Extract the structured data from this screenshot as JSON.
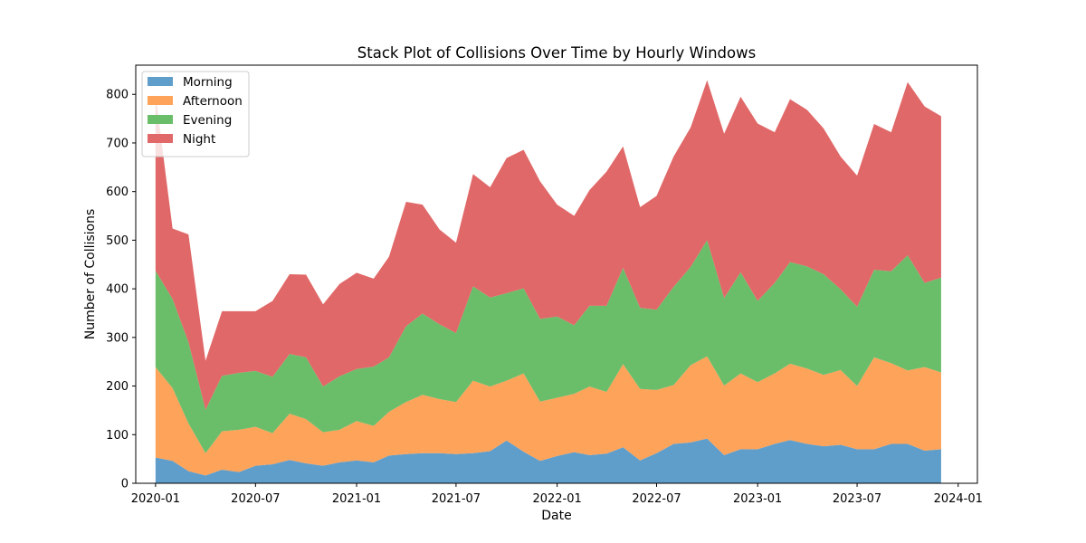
{
  "chart_data": {
    "type": "area",
    "stacked": true,
    "title": "Stack Plot of Collisions Over Time by Hourly Windows",
    "xlabel": "Date",
    "ylabel": "Number of Collisions",
    "x": [
      "2020-01",
      "2020-02",
      "2020-03",
      "2020-04",
      "2020-05",
      "2020-06",
      "2020-07",
      "2020-08",
      "2020-09",
      "2020-10",
      "2020-11",
      "2020-12",
      "2021-01",
      "2021-02",
      "2021-03",
      "2021-04",
      "2021-05",
      "2021-06",
      "2021-07",
      "2021-08",
      "2021-09",
      "2021-10",
      "2021-11",
      "2021-12",
      "2022-01",
      "2022-02",
      "2022-03",
      "2022-04",
      "2022-05",
      "2022-06",
      "2022-07",
      "2022-08",
      "2022-09",
      "2022-10",
      "2022-11",
      "2022-12",
      "2023-01",
      "2023-02",
      "2023-03",
      "2023-04",
      "2023-05",
      "2023-06",
      "2023-07",
      "2023-08",
      "2023-09",
      "2023-10",
      "2023-11",
      "2023-12"
    ],
    "series": [
      {
        "name": "Morning",
        "color": "#5f9ecb",
        "values": [
          53,
          46,
          25,
          16,
          28,
          23,
          36,
          39,
          48,
          41,
          36,
          43,
          47,
          43,
          57,
          60,
          62,
          62,
          60,
          62,
          66,
          88,
          65,
          46,
          56,
          64,
          58,
          61,
          74,
          47,
          62,
          81,
          84,
          92,
          58,
          70,
          70,
          81,
          89,
          81,
          76,
          79,
          70,
          70,
          81,
          81,
          67,
          70
        ]
      },
      {
        "name": "Afternoon",
        "color": "#fda35a",
        "values": [
          186,
          150,
          98,
          46,
          79,
          87,
          80,
          64,
          95,
          91,
          69,
          67,
          81,
          75,
          90,
          107,
          120,
          111,
          107,
          149,
          133,
          123,
          161,
          122,
          120,
          120,
          141,
          127,
          171,
          147,
          130,
          121,
          159,
          169,
          143,
          156,
          138,
          145,
          157,
          155,
          147,
          154,
          130,
          189,
          166,
          151,
          172,
          158
        ]
      },
      {
        "name": "Evening",
        "color": "#6abe6a",
        "values": [
          198,
          183,
          167,
          89,
          114,
          117,
          115,
          116,
          123,
          127,
          94,
          110,
          107,
          122,
          112,
          156,
          167,
          154,
          142,
          194,
          183,
          180,
          175,
          170,
          167,
          141,
          166,
          177,
          198,
          167,
          165,
          202,
          202,
          239,
          180,
          208,
          167,
          186,
          209,
          210,
          207,
          166,
          163,
          180,
          189,
          237,
          173,
          195
        ]
      },
      {
        "name": "Night",
        "color": "#e16868",
        "values": [
          363,
          145,
          222,
          101,
          133,
          127,
          123,
          156,
          164,
          170,
          169,
          190,
          198,
          181,
          207,
          256,
          224,
          195,
          186,
          231,
          227,
          278,
          285,
          283,
          230,
          225,
          238,
          276,
          250,
          207,
          234,
          268,
          287,
          329,
          338,
          361,
          365,
          310,
          335,
          322,
          300,
          273,
          270,
          300,
          286,
          356,
          363,
          332
        ]
      }
    ],
    "ylim": [
      0,
      860
    ],
    "yticks": [
      0,
      100,
      200,
      300,
      400,
      500,
      600,
      700,
      800
    ],
    "xticks": [
      "2020-01",
      "2020-07",
      "2021-01",
      "2021-07",
      "2022-01",
      "2022-07",
      "2023-01",
      "2023-07",
      "2024-01"
    ],
    "legend": "upper left",
    "grid": false
  }
}
